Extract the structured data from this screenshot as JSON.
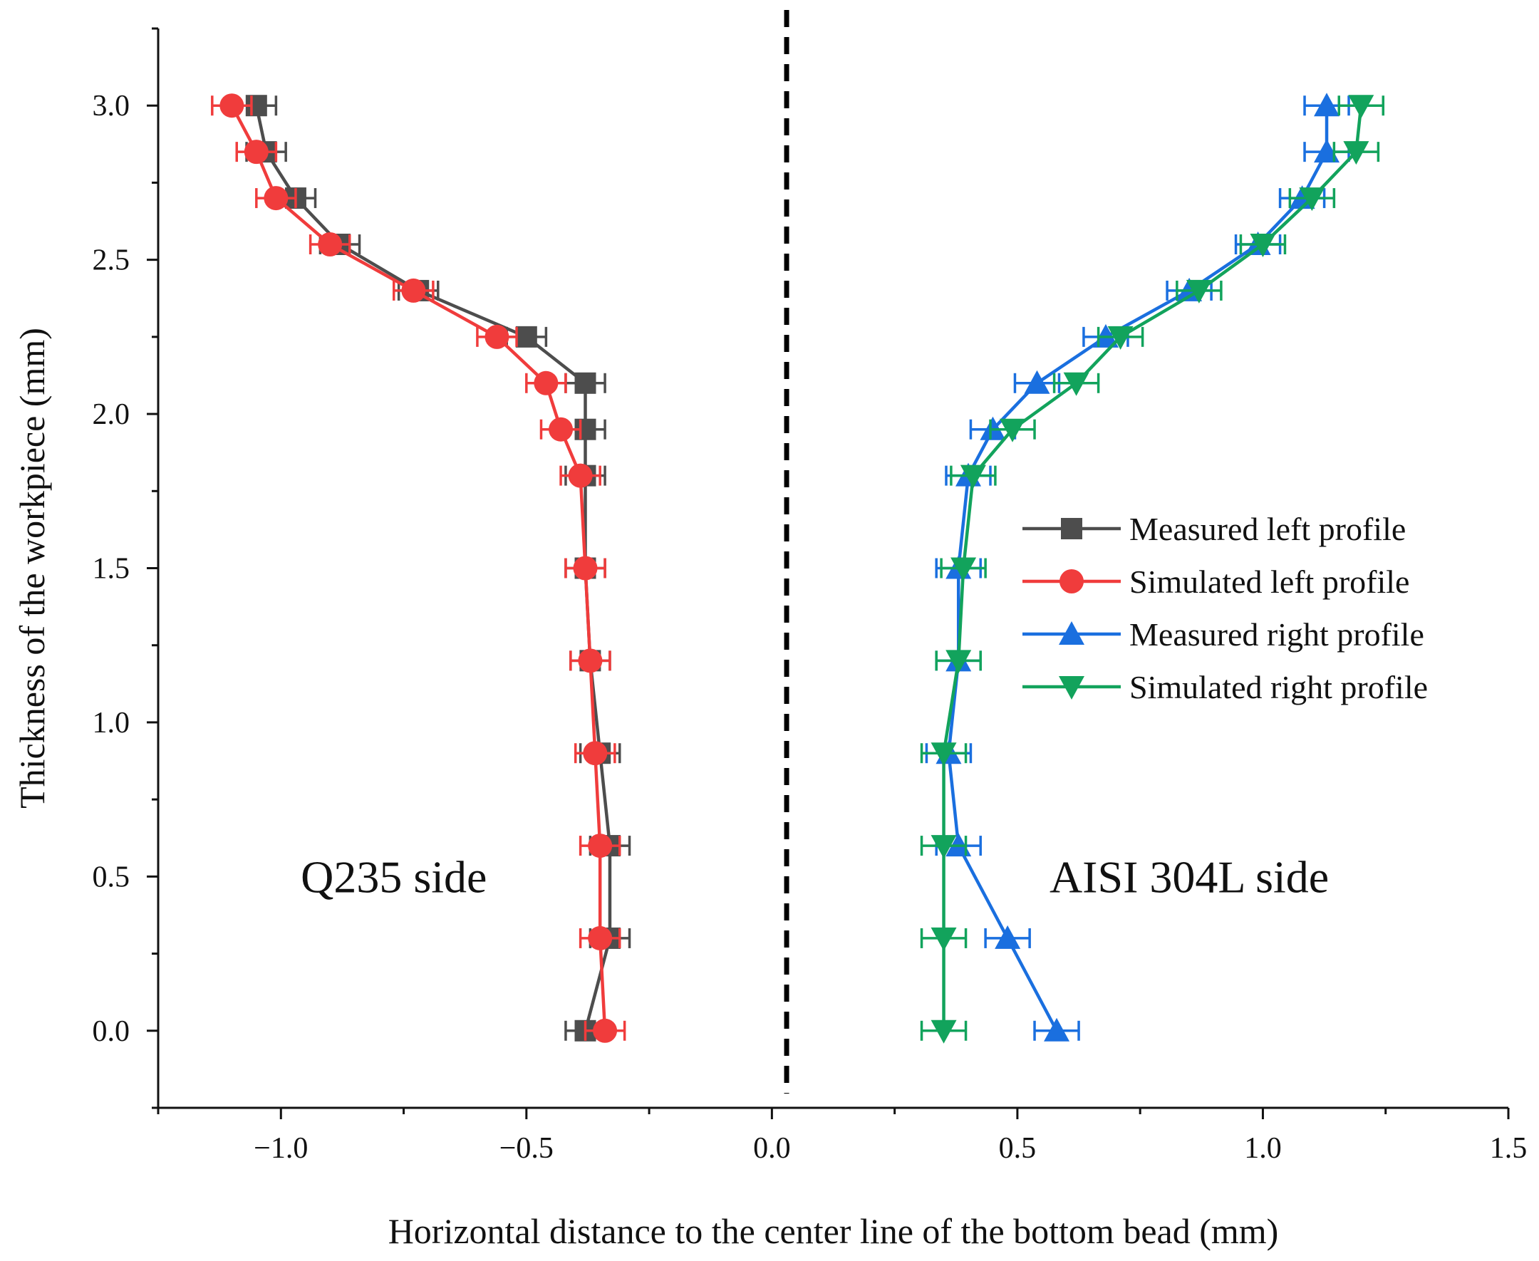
{
  "chart_data": {
    "type": "line",
    "title": "",
    "xlabel": "Horizontal distance to the center line of the bottom bead (mm)",
    "ylabel": "Thickness of the workpiece (mm)",
    "xlim": [
      -1.25,
      1.5
    ],
    "ylim": [
      -0.25,
      3.25
    ],
    "xticks": [
      -1.0,
      -0.5,
      0.0,
      0.5,
      1.0,
      1.5
    ],
    "xtick_labels": [
      "−1.0",
      "−0.5",
      "0.0",
      "0.5",
      "1.0",
      "1.5"
    ],
    "yticks": [
      0.0,
      0.5,
      1.0,
      1.5,
      2.0,
      2.5,
      3.0
    ],
    "ytick_labels": [
      "0.0",
      "0.5",
      "1.0",
      "1.5",
      "2.0",
      "2.5",
      "3.0"
    ],
    "grid": false,
    "legend_position": "center-right",
    "center_line_x": 0.03,
    "annotations": [
      {
        "text": "Q235 side",
        "x": -0.77,
        "y": 0.5
      },
      {
        "text": "AISI 304L side",
        "x": 0.85,
        "y": 0.5
      }
    ],
    "series": [
      {
        "name": "Measured left profile",
        "color": "#4d4d4d",
        "marker": "square",
        "x": [
          -0.38,
          -0.33,
          -0.33,
          -0.35,
          -0.37,
          -0.38,
          -0.38,
          -0.38,
          -0.38,
          -0.5,
          -0.72,
          -0.88,
          -0.97,
          -1.03,
          -1.05
        ],
        "y": [
          0.0,
          0.3,
          0.6,
          0.9,
          1.2,
          1.5,
          1.8,
          1.95,
          2.1,
          2.25,
          2.4,
          2.55,
          2.7,
          2.85,
          3.0
        ],
        "xerr": 0.04
      },
      {
        "name": "Simulated left profile",
        "color": "#f03c3c",
        "marker": "circle",
        "x": [
          -0.34,
          -0.35,
          -0.35,
          -0.36,
          -0.37,
          -0.38,
          -0.39,
          -0.43,
          -0.46,
          -0.56,
          -0.73,
          -0.9,
          -1.01,
          -1.05,
          -1.1
        ],
        "y": [
          0.0,
          0.3,
          0.6,
          0.9,
          1.2,
          1.5,
          1.8,
          1.95,
          2.1,
          2.25,
          2.4,
          2.55,
          2.7,
          2.85,
          3.0
        ],
        "xerr": 0.04
      },
      {
        "name": "Measured right profile",
        "color": "#1a6fdf",
        "marker": "triangle-up",
        "x": [
          0.58,
          0.48,
          0.38,
          0.36,
          0.38,
          0.38,
          0.4,
          0.45,
          0.54,
          0.68,
          0.85,
          0.99,
          1.08,
          1.13,
          1.13
        ],
        "y": [
          0.0,
          0.3,
          0.6,
          0.9,
          1.2,
          1.5,
          1.8,
          1.95,
          2.1,
          2.25,
          2.4,
          2.55,
          2.7,
          2.85,
          3.0
        ],
        "xerr": 0.045
      },
      {
        "name": "Simulated right profile",
        "color": "#12a35c",
        "marker": "triangle-down",
        "x": [
          0.35,
          0.35,
          0.35,
          0.35,
          0.38,
          0.39,
          0.41,
          0.49,
          0.62,
          0.71,
          0.87,
          1.0,
          1.1,
          1.19,
          1.2
        ],
        "y": [
          0.0,
          0.3,
          0.6,
          0.9,
          1.2,
          1.5,
          1.8,
          1.95,
          2.1,
          2.25,
          2.4,
          2.55,
          2.7,
          2.85,
          3.0
        ],
        "xerr": 0.045
      }
    ]
  }
}
